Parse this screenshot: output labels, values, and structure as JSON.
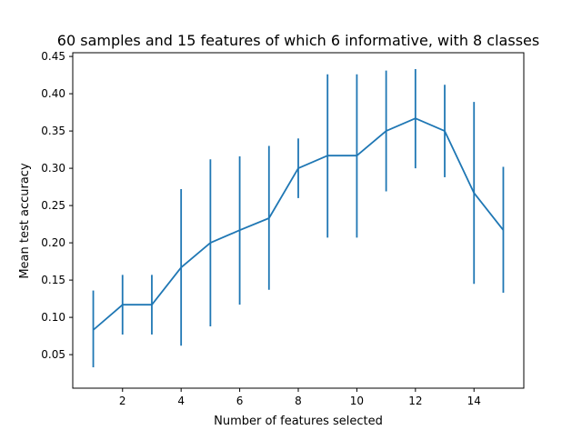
{
  "chart_data": {
    "type": "line",
    "title": "60 samples and 15 features of which 6 informative, with 8 classes",
    "xlabel": "Number of features selected",
    "ylabel": "Mean test accuracy",
    "xlim": [
      0.3,
      15.7
    ],
    "ylim": [
      0.005,
      0.455
    ],
    "xticks": [
      2,
      4,
      6,
      8,
      10,
      12,
      14
    ],
    "xtick_labels": [
      "2",
      "4",
      "6",
      "8",
      "10",
      "12",
      "14"
    ],
    "yticks": [
      0.05,
      0.1,
      0.15,
      0.2,
      0.25,
      0.3,
      0.35,
      0.4,
      0.45
    ],
    "ytick_labels": [
      "0.05",
      "0.10",
      "0.15",
      "0.20",
      "0.25",
      "0.30",
      "0.35",
      "0.40",
      "0.45"
    ],
    "grid": false,
    "legend": "none",
    "color": "#1f77b4",
    "series": [
      {
        "x": [
          1,
          2,
          3,
          4,
          5,
          6,
          7,
          8,
          9,
          10,
          11,
          12,
          13,
          14,
          15
        ],
        "y": [
          0.083,
          0.117,
          0.117,
          0.167,
          0.2,
          0.217,
          0.233,
          0.3,
          0.317,
          0.317,
          0.35,
          0.367,
          0.35,
          0.267,
          0.217
        ],
        "yerr_lower": [
          0.033,
          0.077,
          0.077,
          0.062,
          0.088,
          0.117,
          0.137,
          0.26,
          0.207,
          0.207,
          0.269,
          0.3,
          0.288,
          0.145,
          0.133
        ],
        "yerr_upper": [
          0.136,
          0.157,
          0.157,
          0.272,
          0.312,
          0.316,
          0.33,
          0.34,
          0.426,
          0.426,
          0.431,
          0.433,
          0.412,
          0.389,
          0.302
        ]
      }
    ]
  }
}
